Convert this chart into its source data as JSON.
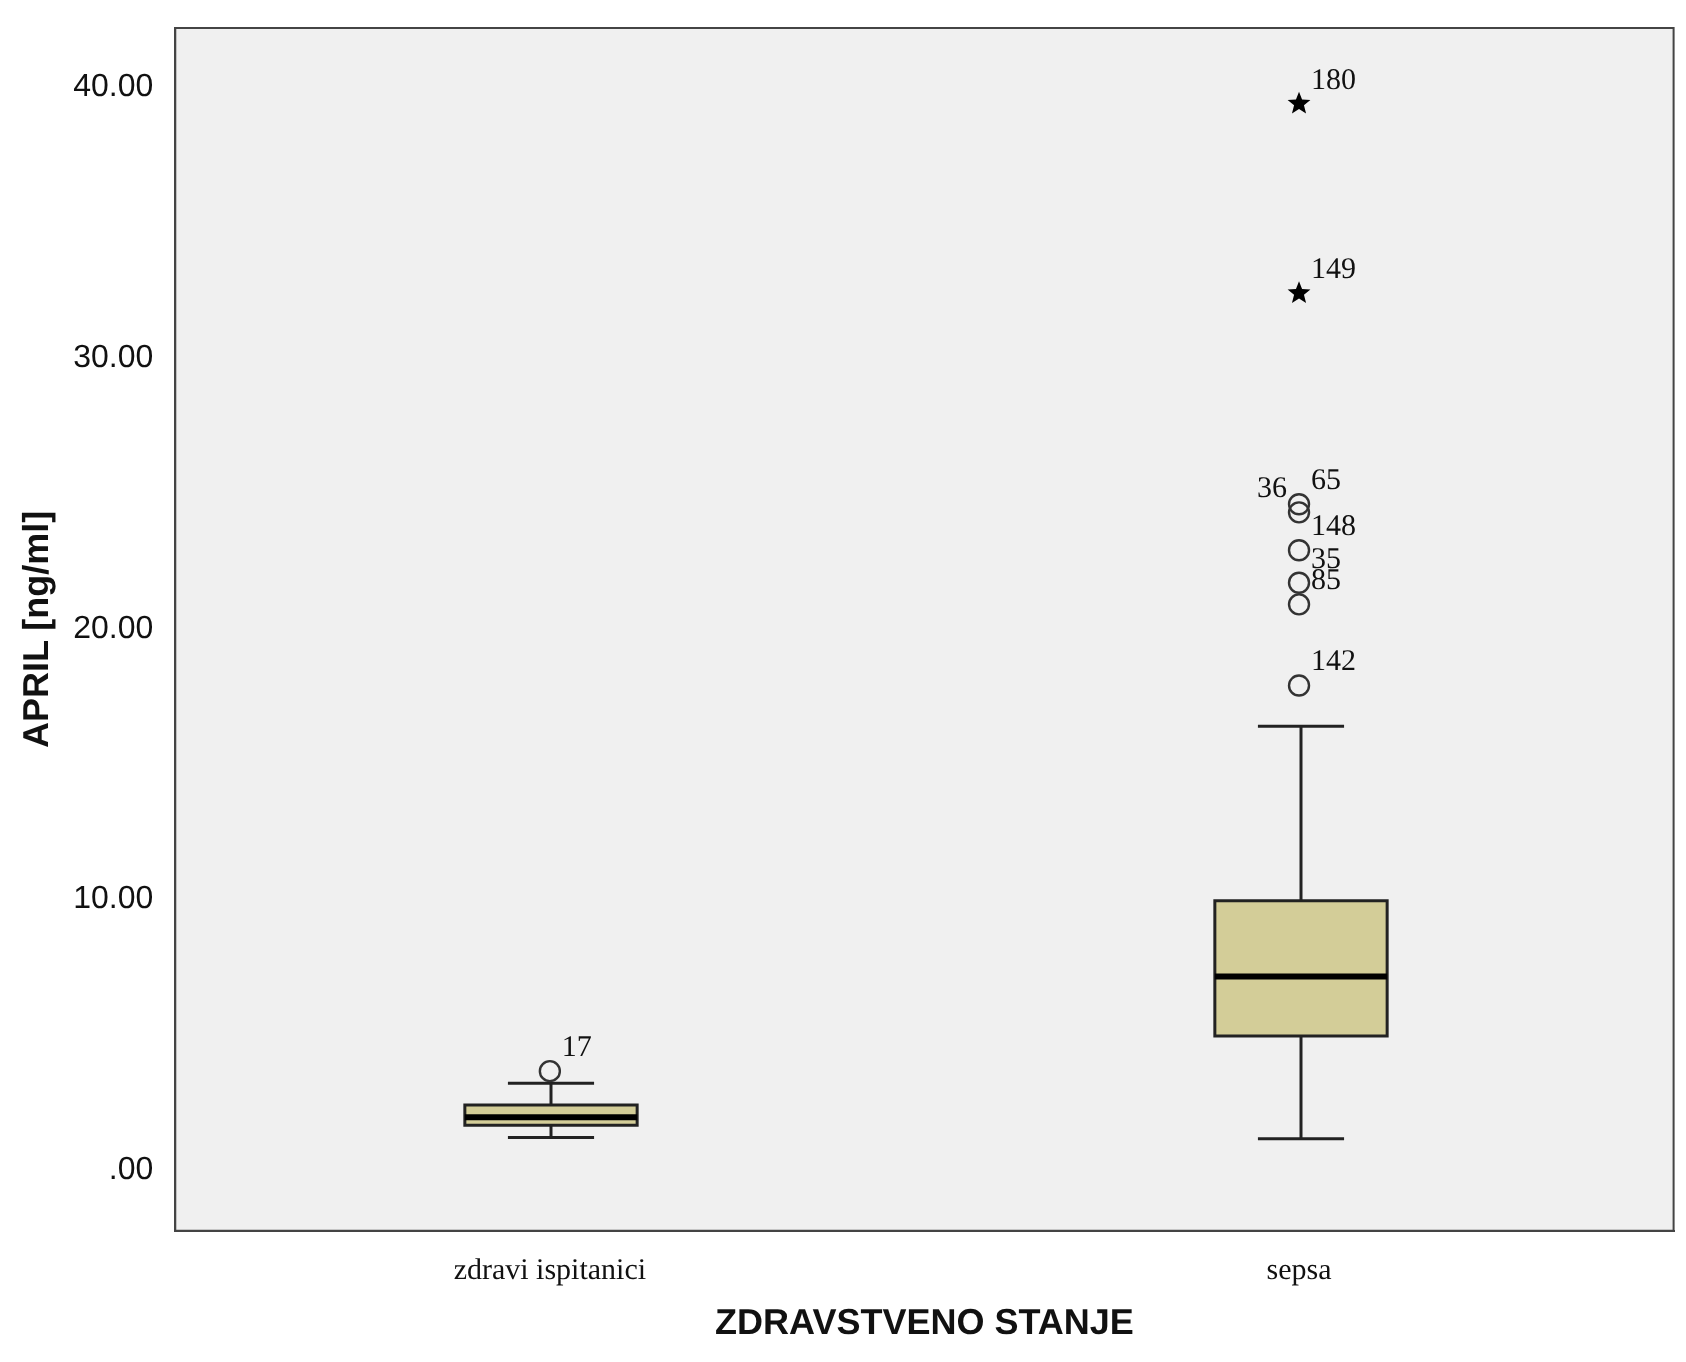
{
  "chart_data": {
    "type": "box",
    "xlabel": "ZDRAVSTVENO STANJE",
    "ylabel": "APRIL [ng/ml]",
    "categories": [
      "zdravi ispitanici",
      "sepsa"
    ],
    "color": "#d3cd98",
    "boxes": [
      {
        "low": 1.2,
        "q1": 1.65,
        "median": 1.95,
        "q3": 2.4,
        "high": 3.2
      },
      {
        "low": 1.15,
        "q1": 4.95,
        "median": 7.15,
        "q3": 9.95,
        "high": 16.4
      }
    ],
    "series": [
      {
        "type": "scatter",
        "marker": "circle",
        "color": "#333333",
        "x": [
          "zdravi ispitanici",
          "sepsa",
          "sepsa",
          "sepsa",
          "sepsa",
          "sepsa",
          "sepsa"
        ],
        "values": [
          3.65,
          17.9,
          20.9,
          21.7,
          22.9,
          24.6,
          24.3
        ]
      },
      {
        "type": "scatter",
        "marker": "star",
        "color": "#000000",
        "x": [
          "sepsa",
          "sepsa"
        ],
        "values": [
          32.4,
          39.4
        ]
      }
    ],
    "ylim": [
      -2.25,
      42.2
    ],
    "yticks": [
      {
        "value": 0,
        "label": ".00"
      },
      {
        "value": 10,
        "label": "10.00"
      },
      {
        "value": 20,
        "label": "20.00"
      },
      {
        "value": 30,
        "label": "30.00"
      },
      {
        "value": 40,
        "label": "40.00"
      }
    ],
    "annotations": [
      {
        "text": "180",
        "x": "sepsa",
        "y": 39.4
      },
      {
        "text": "149",
        "x": "sepsa",
        "y": 32.4
      },
      {
        "text": "65",
        "x": "sepsa",
        "y": 24.6
      },
      {
        "text": "36",
        "x": "sepsa",
        "y": 24.3
      },
      {
        "text": "148",
        "x": "sepsa",
        "y": 22.9
      },
      {
        "text": "35",
        "x": "sepsa",
        "y": 21.7
      },
      {
        "text": "85",
        "x": "sepsa",
        "y": 20.9
      },
      {
        "text": "142",
        "x": "sepsa",
        "y": 17.9
      },
      {
        "text": "17",
        "x": "zdravi ispitanici",
        "y": 3.65
      }
    ],
    "grid": false,
    "legend": false
  }
}
